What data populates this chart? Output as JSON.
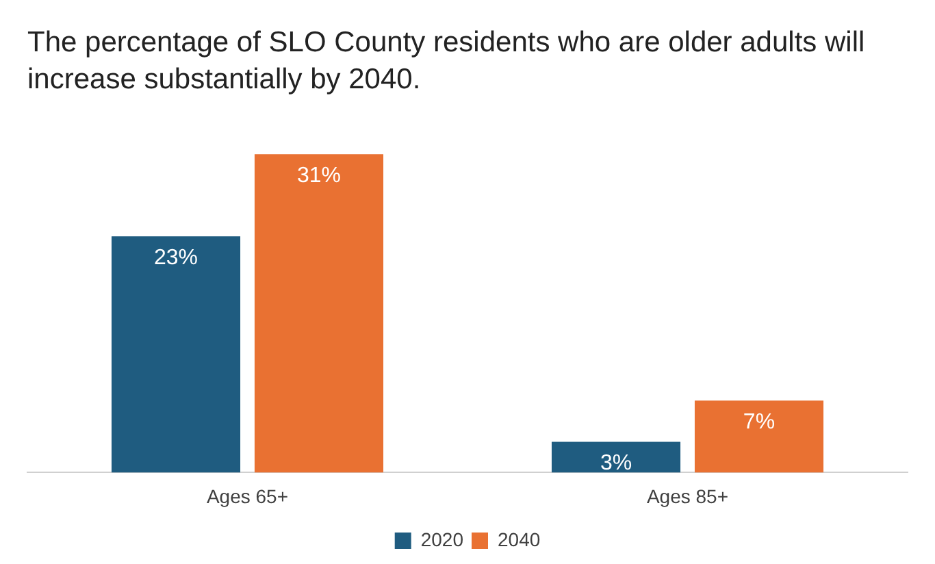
{
  "chart_data": {
    "type": "bar",
    "title": "The percentage of SLO County residents who are older adults will increase substantially by 2040.",
    "categories": [
      "Ages 65+",
      "Ages 85+"
    ],
    "series": [
      {
        "name": "2020",
        "color": "#1f5c80",
        "values": [
          23,
          3
        ],
        "value_labels": [
          "23%",
          "3%"
        ]
      },
      {
        "name": "2040",
        "color": "#e97132",
        "values": [
          31,
          7
        ],
        "value_labels": [
          "31%",
          "7%"
        ]
      }
    ],
    "grid": false,
    "legend": "bottom",
    "tick_labels": "x"
  }
}
